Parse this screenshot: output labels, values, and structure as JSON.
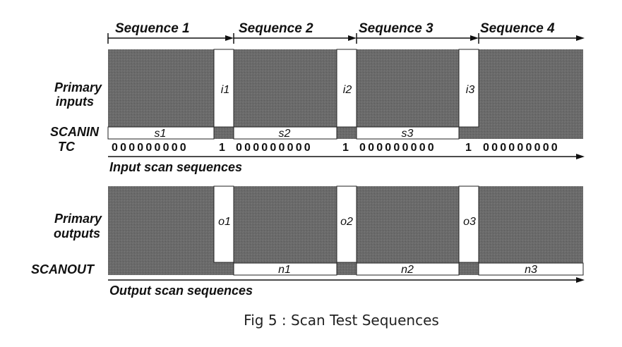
{
  "sequence_labels": [
    "Sequence 1",
    "Sequence 2",
    "Sequence 3",
    "Sequence 4"
  ],
  "row_labels": {
    "primary_inputs": [
      "Primary",
      "inputs"
    ],
    "scanin": "SCANIN",
    "tc": "TC",
    "primary_outputs": [
      "Primary",
      "outputs"
    ],
    "scanout": "SCANOUT"
  },
  "input_slots": [
    "i1",
    "i2",
    "i3"
  ],
  "scanin_slots": [
    "s1",
    "s2",
    "s3"
  ],
  "output_slots": [
    "o1",
    "o2",
    "o3"
  ],
  "scanout_slots": [
    "n1",
    "n2",
    "n3"
  ],
  "tc_groups": [
    "000000000",
    "1",
    "000000000",
    "1",
    "000000000",
    "1",
    "000000000"
  ],
  "axis_labels": {
    "input": "Input scan sequences",
    "output": "Output scan sequences"
  },
  "caption": "Fig 5 : Scan Test Sequences",
  "colors": {
    "block_fill": "#6a6a6a",
    "ink": "#111111",
    "slot_fill": "#ffffff"
  }
}
